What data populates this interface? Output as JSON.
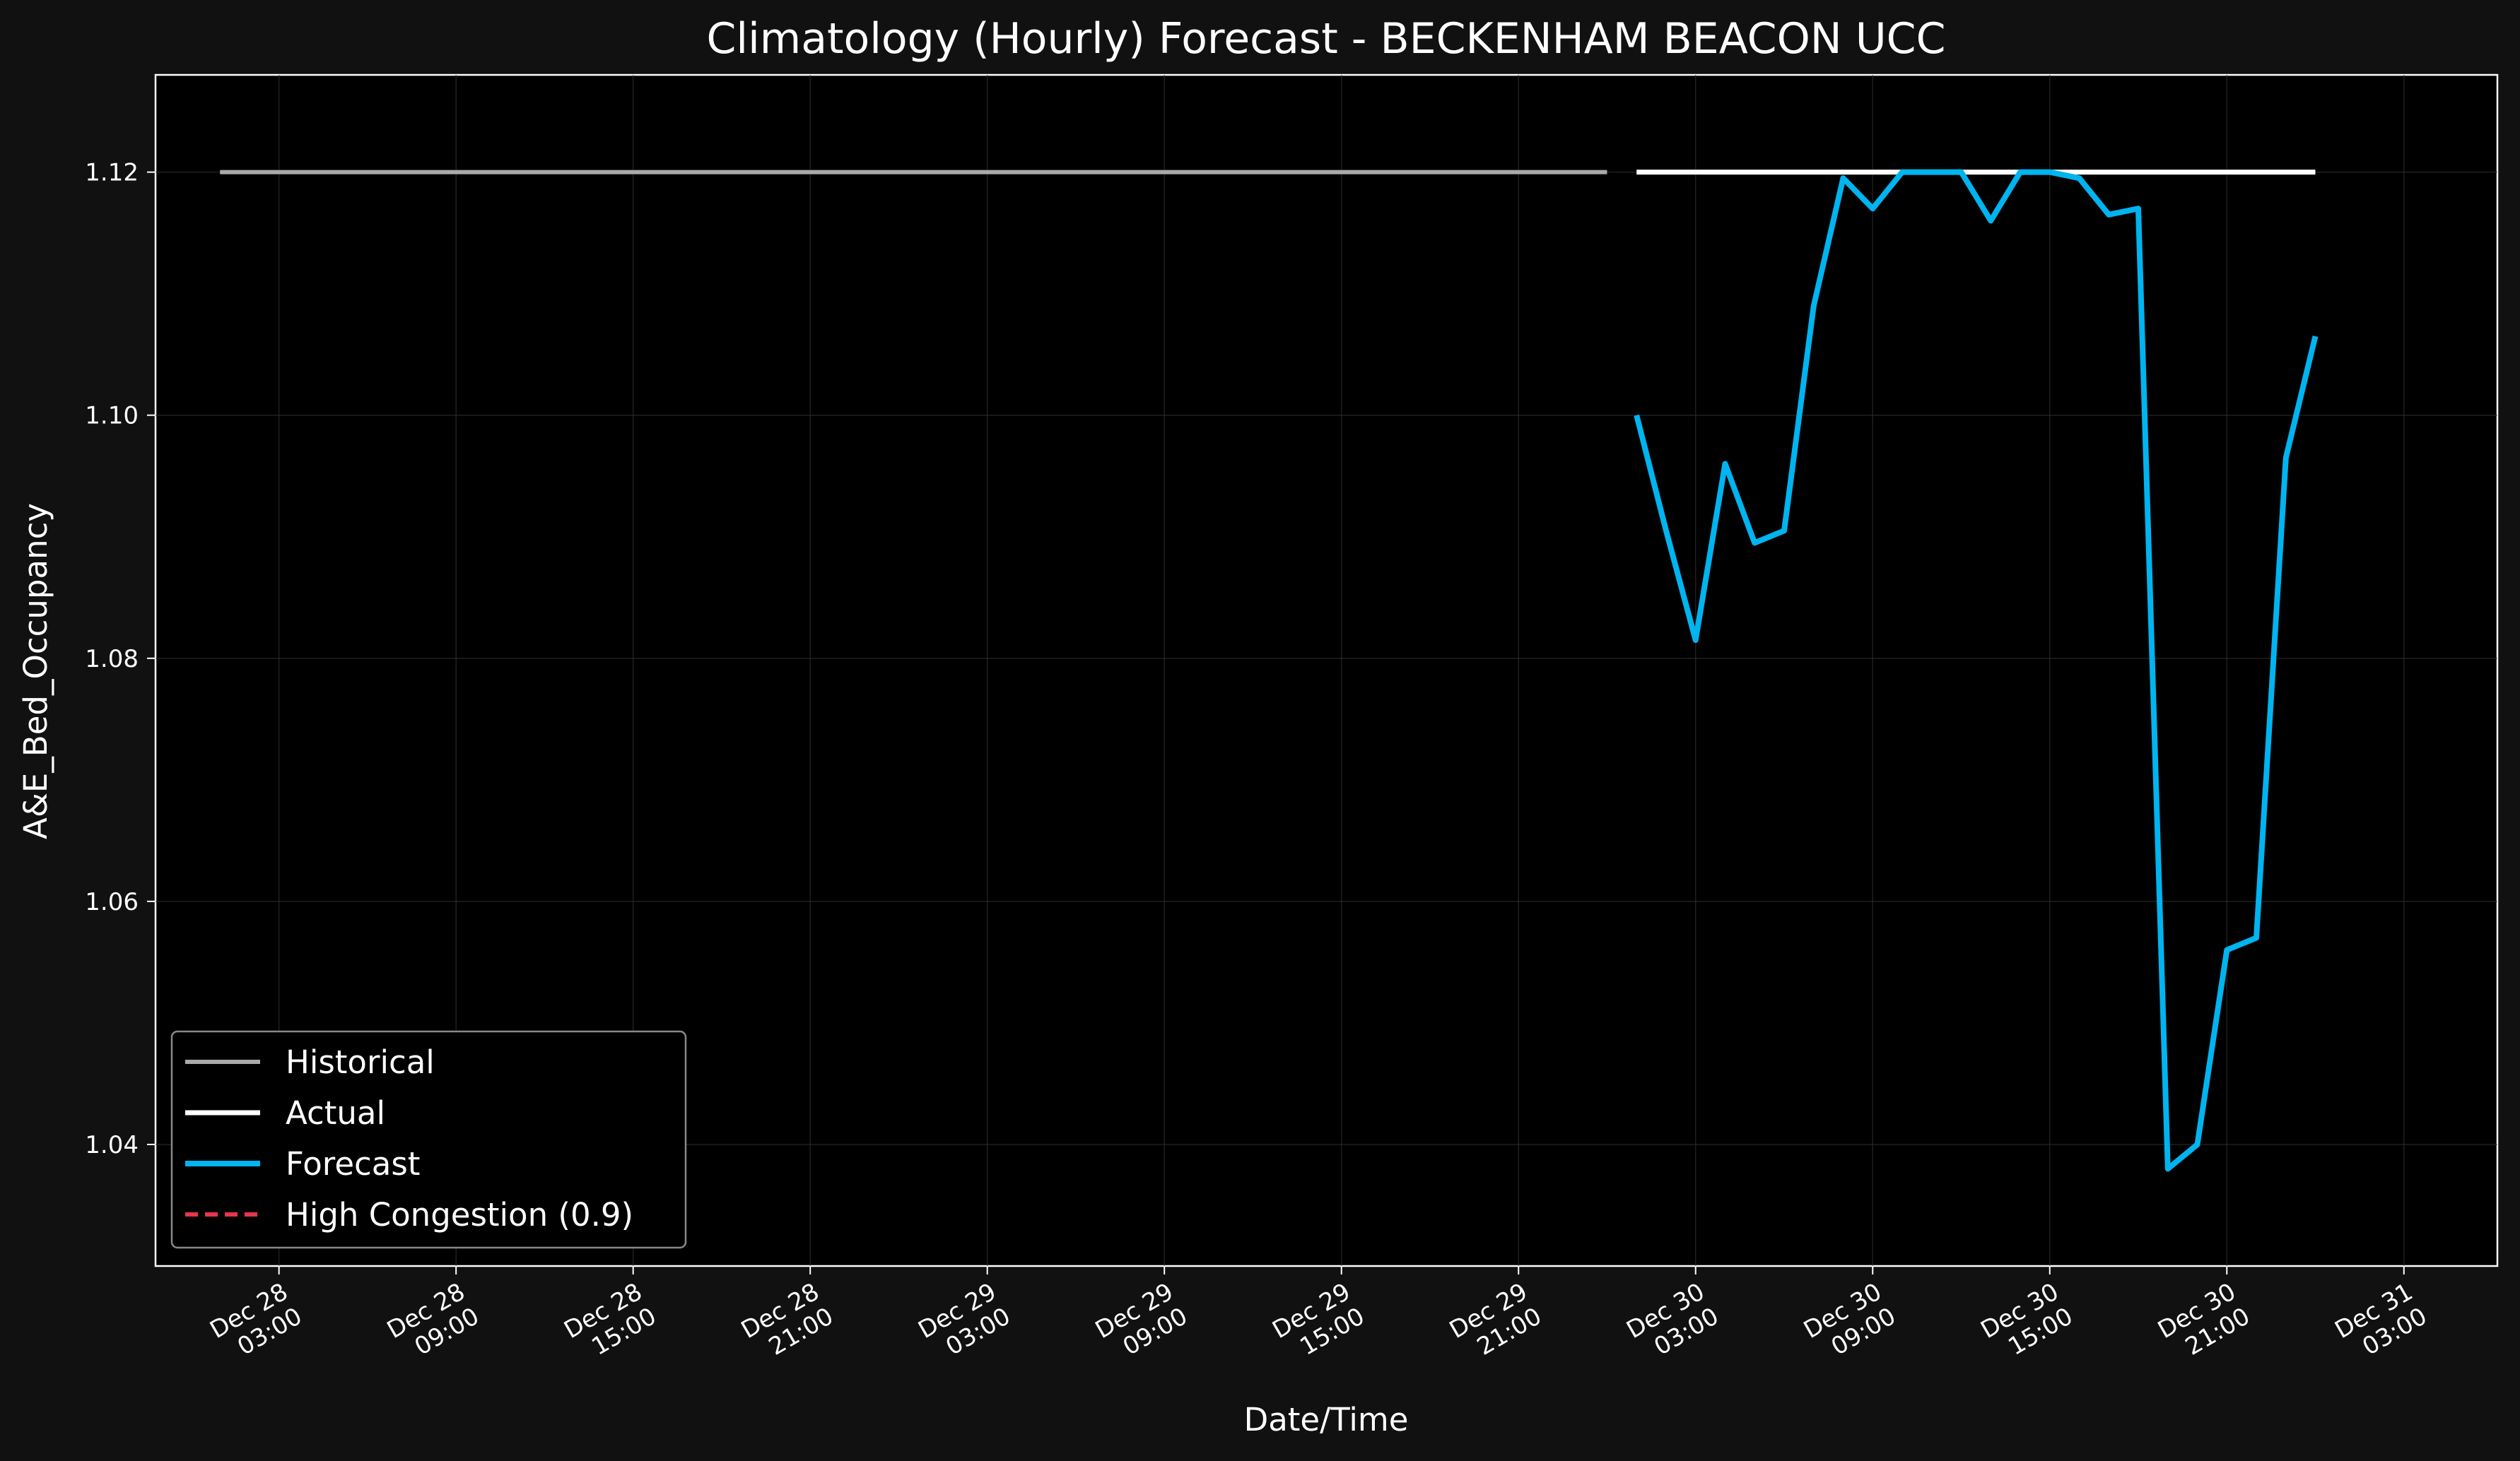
{
  "chart_data": {
    "type": "line",
    "title": "Climatology (Hourly) Forecast - BECKENHAM BEACON UCC",
    "xlabel": "Date/Time",
    "ylabel": "A&E_Bed_Occupancy",
    "xlim": [
      "2024-12-27T22:49:00",
      "2024-12-31T06:10:00"
    ],
    "ylim": [
      1.03,
      1.128
    ],
    "grid": true,
    "legend_position": "lower-left",
    "colors": {
      "background": "#111111",
      "plot_background": "#000000",
      "historical": "#aaaaaa",
      "actual": "#ffffff",
      "forecast": "#00b4f0",
      "high_congestion": "#e8344e"
    },
    "xticks": [
      {
        "date": "2024-12-28T03:00:00",
        "line1": "Dec 28",
        "line2": "03:00"
      },
      {
        "date": "2024-12-28T09:00:00",
        "line1": "Dec 28",
        "line2": "09:00"
      },
      {
        "date": "2024-12-28T15:00:00",
        "line1": "Dec 28",
        "line2": "15:00"
      },
      {
        "date": "2024-12-28T21:00:00",
        "line1": "Dec 28",
        "line2": "21:00"
      },
      {
        "date": "2024-12-29T03:00:00",
        "line1": "Dec 29",
        "line2": "03:00"
      },
      {
        "date": "2024-12-29T09:00:00",
        "line1": "Dec 29",
        "line2": "09:00"
      },
      {
        "date": "2024-12-29T15:00:00",
        "line1": "Dec 29",
        "line2": "15:00"
      },
      {
        "date": "2024-12-29T21:00:00",
        "line1": "Dec 29",
        "line2": "21:00"
      },
      {
        "date": "2024-12-30T03:00:00",
        "line1": "Dec 30",
        "line2": "03:00"
      },
      {
        "date": "2024-12-30T09:00:00",
        "line1": "Dec 30",
        "line2": "09:00"
      },
      {
        "date": "2024-12-30T15:00:00",
        "line1": "Dec 30",
        "line2": "15:00"
      },
      {
        "date": "2024-12-30T21:00:00",
        "line1": "Dec 30",
        "line2": "21:00"
      },
      {
        "date": "2024-12-31T03:00:00",
        "line1": "Dec 31",
        "line2": "03:00"
      }
    ],
    "yticks": [
      {
        "value": 1.04,
        "label": "1.04"
      },
      {
        "value": 1.06,
        "label": "1.06"
      },
      {
        "value": 1.08,
        "label": "1.08"
      },
      {
        "value": 1.1,
        "label": "1.10"
      },
      {
        "value": 1.12,
        "label": "1.12"
      }
    ],
    "series": [
      {
        "name": "Historical",
        "x": [
          "2024-12-28T01:00:00",
          "2024-12-30T00:00:00"
        ],
        "y": [
          1.12,
          1.12
        ]
      },
      {
        "name": "Actual",
        "x": [
          "2024-12-30T01:00:00",
          "2024-12-31T00:00:00"
        ],
        "y": [
          1.12,
          1.12
        ]
      },
      {
        "name": "Forecast",
        "x": [
          "2024-12-30T01:00:00",
          "2024-12-30T02:00:00",
          "2024-12-30T03:00:00",
          "2024-12-30T04:00:00",
          "2024-12-30T05:00:00",
          "2024-12-30T06:00:00",
          "2024-12-30T07:00:00",
          "2024-12-30T08:00:00",
          "2024-12-30T09:00:00",
          "2024-12-30T10:00:00",
          "2024-12-30T11:00:00",
          "2024-12-30T12:00:00",
          "2024-12-30T13:00:00",
          "2024-12-30T14:00:00",
          "2024-12-30T15:00:00",
          "2024-12-30T16:00:00",
          "2024-12-30T17:00:00",
          "2024-12-30T18:00:00",
          "2024-12-30T19:00:00",
          "2024-12-30T20:00:00",
          "2024-12-30T21:00:00",
          "2024-12-30T22:00:00",
          "2024-12-30T23:00:00",
          "2024-12-31T00:00:00"
        ],
        "y": [
          1.1,
          1.0905,
          1.0815,
          1.096,
          1.0895,
          1.0905,
          1.109,
          1.1195,
          1.117,
          1.12,
          1.12,
          1.12,
          1.116,
          1.12,
          1.12,
          1.1195,
          1.1165,
          1.117,
          1.038,
          1.04,
          1.056,
          1.057,
          1.0965,
          1.1065
        ]
      },
      {
        "name": "High Congestion (0.9)",
        "x": [],
        "y": [],
        "style": "dashed"
      }
    ]
  }
}
